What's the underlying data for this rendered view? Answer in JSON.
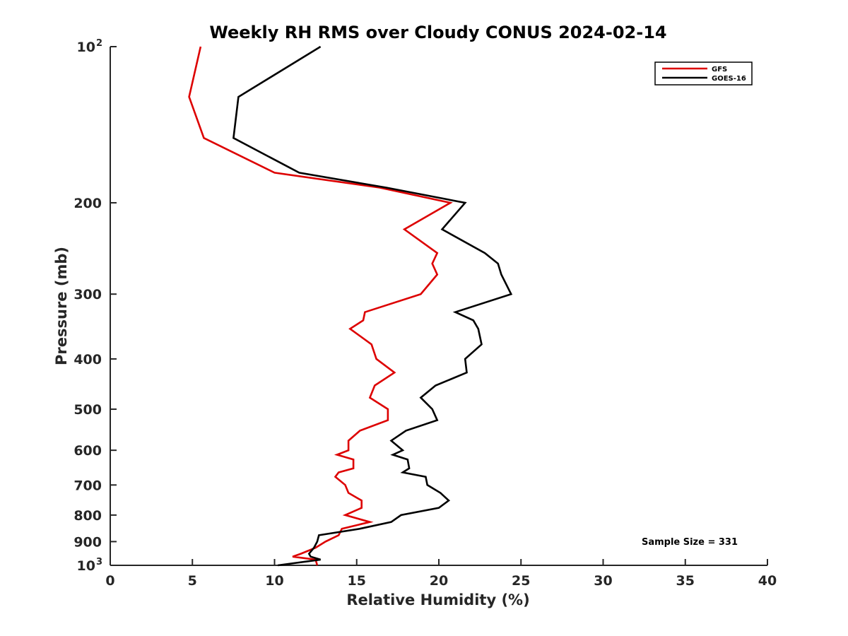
{
  "chart_data": {
    "type": "line",
    "title": "Weekly RH RMS over Cloudy CONUS 2024-02-14",
    "xlabel": "Relative Humidity (%)",
    "ylabel": "Pressure (mb)",
    "xlim": [
      0,
      40
    ],
    "ylim": [
      100,
      1000
    ],
    "y_scale": "log",
    "y_direction": "reversed",
    "grid": false,
    "legend_position": "top-right",
    "x_ticks": [
      0,
      5,
      10,
      15,
      20,
      25,
      30,
      35,
      40
    ],
    "y_ticks": [
      {
        "value": 100,
        "base": "10",
        "exp": "2",
        "label": ""
      },
      {
        "value": 200,
        "label": "200"
      },
      {
        "value": 300,
        "label": "300"
      },
      {
        "value": 400,
        "label": "400"
      },
      {
        "value": 500,
        "label": "500"
      },
      {
        "value": 600,
        "label": "600"
      },
      {
        "value": 700,
        "label": "700"
      },
      {
        "value": 800,
        "label": "800"
      },
      {
        "value": 900,
        "label": "900"
      },
      {
        "value": 1000,
        "base": "10",
        "exp": "3",
        "label": ""
      }
    ],
    "annotation": "Sample Size = 331",
    "series": [
      {
        "name": "GFS",
        "color": "#dd0000",
        "points": [
          [
            5.5,
            100
          ],
          [
            4.8,
            125
          ],
          [
            5.7,
            150
          ],
          [
            10.0,
            175
          ],
          [
            16.4,
            187
          ],
          [
            20.7,
            200
          ],
          [
            17.9,
            225
          ],
          [
            19.9,
            250
          ],
          [
            19.6,
            262
          ],
          [
            19.9,
            275
          ],
          [
            18.9,
            300
          ],
          [
            15.5,
            325
          ],
          [
            15.4,
            337
          ],
          [
            14.6,
            350
          ],
          [
            15.9,
            375
          ],
          [
            16.2,
            400
          ],
          [
            17.3,
            425
          ],
          [
            16.1,
            450
          ],
          [
            15.8,
            475
          ],
          [
            16.9,
            500
          ],
          [
            16.9,
            525
          ],
          [
            15.2,
            550
          ],
          [
            14.5,
            575
          ],
          [
            14.5,
            600
          ],
          [
            13.8,
            612
          ],
          [
            14.8,
            625
          ],
          [
            14.8,
            650
          ],
          [
            13.9,
            662
          ],
          [
            13.7,
            675
          ],
          [
            14.3,
            700
          ],
          [
            14.5,
            725
          ],
          [
            15.3,
            750
          ],
          [
            15.3,
            775
          ],
          [
            14.3,
            800
          ],
          [
            15.8,
            825
          ],
          [
            14.1,
            850
          ],
          [
            13.9,
            875
          ],
          [
            13.1,
            900
          ],
          [
            12.5,
            925
          ],
          [
            11.6,
            950
          ],
          [
            11.1,
            962
          ],
          [
            12.5,
            975
          ],
          [
            12.6,
            1000
          ]
        ]
      },
      {
        "name": "GOES-16",
        "color": "#000000",
        "points": [
          [
            12.8,
            100
          ],
          [
            7.8,
            125
          ],
          [
            7.5,
            150
          ],
          [
            11.5,
            175
          ],
          [
            16.8,
            187
          ],
          [
            21.6,
            200
          ],
          [
            20.2,
            225
          ],
          [
            22.8,
            250
          ],
          [
            23.6,
            262
          ],
          [
            23.8,
            275
          ],
          [
            24.4,
            300
          ],
          [
            21.0,
            325
          ],
          [
            22.1,
            337
          ],
          [
            22.4,
            350
          ],
          [
            22.6,
            375
          ],
          [
            21.6,
            400
          ],
          [
            21.7,
            425
          ],
          [
            19.8,
            450
          ],
          [
            18.9,
            475
          ],
          [
            19.6,
            500
          ],
          [
            19.9,
            525
          ],
          [
            18.0,
            550
          ],
          [
            17.1,
            575
          ],
          [
            17.8,
            600
          ],
          [
            17.2,
            612
          ],
          [
            18.1,
            625
          ],
          [
            18.2,
            650
          ],
          [
            17.8,
            662
          ],
          [
            19.2,
            675
          ],
          [
            19.3,
            700
          ],
          [
            20.1,
            725
          ],
          [
            20.6,
            750
          ],
          [
            20.0,
            775
          ],
          [
            17.7,
            800
          ],
          [
            17.1,
            825
          ],
          [
            15.2,
            850
          ],
          [
            12.7,
            875
          ],
          [
            12.6,
            900
          ],
          [
            12.4,
            925
          ],
          [
            12.1,
            950
          ],
          [
            12.2,
            962
          ],
          [
            12.8,
            975
          ],
          [
            10.2,
            1000
          ]
        ]
      }
    ]
  }
}
